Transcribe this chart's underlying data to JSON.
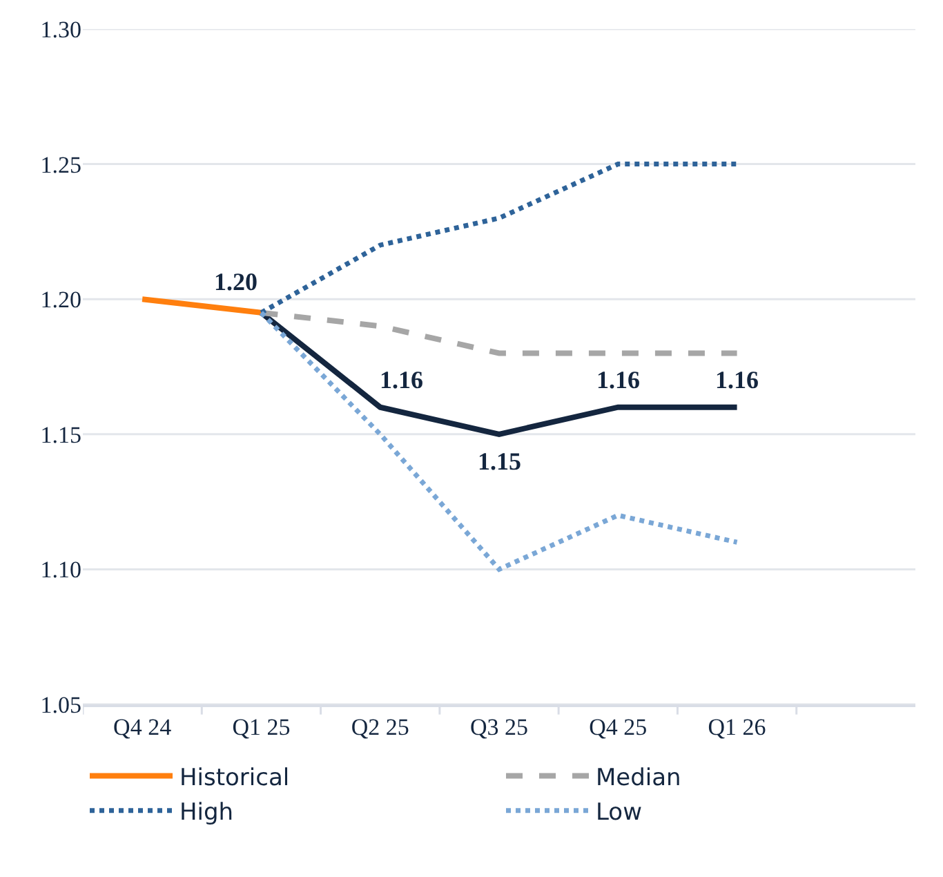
{
  "chart_data": {
    "type": "line",
    "categories": [
      "Q4 24",
      "Q1 25",
      "Q2 25",
      "Q3 25",
      "Q4 25",
      "Q1 26",
      null
    ],
    "series": [
      {
        "name": "Historical",
        "color": "#ff7f0e",
        "values": [
          1.2,
          1.195,
          null,
          null,
          null,
          null,
          null
        ],
        "line_style": "solid"
      },
      {
        "color": "#14263f",
        "values": [
          null,
          1.195,
          1.16,
          1.15,
          1.16,
          1.16,
          null
        ],
        "line_style": "solid",
        "value_labels": [
          null,
          "1.20",
          "1.16",
          "1.15",
          "1.16",
          "1.16",
          null
        ]
      },
      {
        "name": "Median",
        "color": "#a6a6a6",
        "values": [
          null,
          1.195,
          1.19,
          1.18,
          1.18,
          1.18,
          null
        ],
        "line_style": "dashed"
      },
      {
        "name": "High",
        "color": "#2e6399",
        "values": [
          null,
          1.195,
          1.22,
          1.23,
          1.25,
          1.25,
          null
        ],
        "line_style": "dotted"
      },
      {
        "name": "Low",
        "color": "#7aa7d6",
        "values": [
          null,
          1.195,
          1.15,
          1.1,
          1.12,
          1.11,
          null
        ],
        "line_style": "dotted"
      }
    ],
    "ylim": [
      1.05,
      1.3
    ],
    "yticks": [
      "1.05",
      "1.10",
      "1.15",
      "1.20",
      "1.25",
      "1.30"
    ],
    "grid": "y",
    "legend": "bottom",
    "marker": "none"
  }
}
